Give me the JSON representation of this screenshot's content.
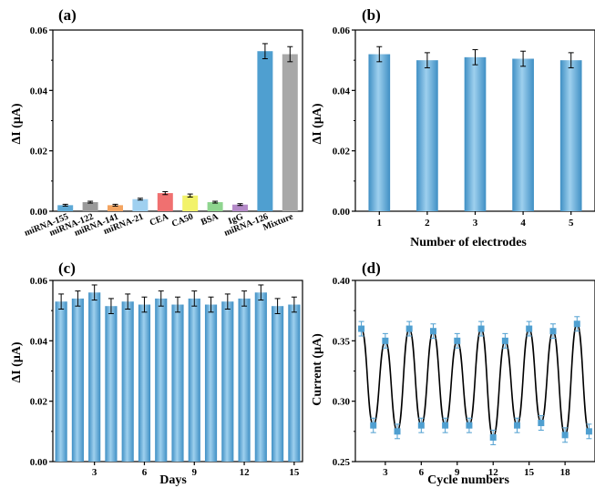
{
  "chart_data": [
    {
      "panel": "(a)",
      "type": "bar",
      "ylabel": "ΔI (μA)",
      "xlabel": "",
      "ylim": [
        0,
        0.06
      ],
      "yticks": [
        "0.00",
        "0.02",
        "0.04",
        "0.06"
      ],
      "categories": [
        "miRNA-155",
        "miRNA-122",
        "miRNA-141",
        "miRNA-21",
        "CEA",
        "CA50",
        "BSA",
        "IgG",
        "miRNA-126",
        "Mixture"
      ],
      "values": [
        0.002,
        0.003,
        0.002,
        0.004,
        0.006,
        0.0052,
        0.003,
        0.0022,
        0.053,
        0.052
      ],
      "errors": [
        0.0003,
        0.0003,
        0.0003,
        0.0003,
        0.0005,
        0.0005,
        0.0003,
        0.0003,
        0.0025,
        0.0025
      ],
      "colors": [
        "#5da9d6",
        "#9a9a9a",
        "#f4a460",
        "#9fd0f0",
        "#f07070",
        "#f2f26a",
        "#8fd58f",
        "#b48ac8",
        "#4f9fd0",
        "#a8a8a8"
      ]
    },
    {
      "panel": "(b)",
      "type": "bar",
      "ylabel": "ΔI (μA)",
      "xlabel": "Number of electrodes",
      "ylim": [
        0,
        0.06
      ],
      "yticks": [
        "0.00",
        "0.02",
        "0.04",
        "0.06"
      ],
      "categories": [
        "1",
        "2",
        "3",
        "4",
        "5"
      ],
      "values": [
        0.052,
        0.05,
        0.051,
        0.0505,
        0.05
      ],
      "errors": [
        0.0025,
        0.0025,
        0.0025,
        0.0025,
        0.0025
      ]
    },
    {
      "panel": "(c)",
      "type": "bar",
      "ylabel": "ΔI (μA)",
      "xlabel": "Days",
      "ylim": [
        0,
        0.06
      ],
      "yticks": [
        "0.00",
        "0.02",
        "0.04",
        "0.06"
      ],
      "xticks": [
        "3",
        "6",
        "9",
        "12",
        "15"
      ],
      "x": [
        1,
        2,
        3,
        4,
        5,
        6,
        7,
        8,
        9,
        10,
        11,
        12,
        13,
        14,
        15
      ],
      "values": [
        0.053,
        0.054,
        0.056,
        0.0515,
        0.053,
        0.052,
        0.054,
        0.052,
        0.054,
        0.052,
        0.053,
        0.054,
        0.056,
        0.0515,
        0.052
      ],
      "errors": [
        0.0025,
        0.0025,
        0.0025,
        0.0025,
        0.0025,
        0.0025,
        0.0025,
        0.0025,
        0.0025,
        0.0025,
        0.0025,
        0.0025,
        0.0025,
        0.0025,
        0.0025
      ]
    },
    {
      "panel": "(d)",
      "type": "line",
      "ylabel": "Current (μA)",
      "xlabel": "Cycle numbers",
      "ylim": [
        0.25,
        0.4
      ],
      "xlim": [
        0.5,
        20.5
      ],
      "yticks": [
        "0.25",
        "0.30",
        "0.35",
        "0.40"
      ],
      "xticks": [
        "3",
        "6",
        "9",
        "12",
        "15",
        "18"
      ],
      "x": [
        1,
        2,
        3,
        4,
        5,
        6,
        7,
        8,
        9,
        10,
        11,
        12,
        13,
        14,
        15,
        16,
        17,
        18,
        19,
        20
      ],
      "values": [
        0.36,
        0.28,
        0.35,
        0.275,
        0.36,
        0.28,
        0.358,
        0.28,
        0.35,
        0.28,
        0.36,
        0.27,
        0.35,
        0.28,
        0.36,
        0.282,
        0.358,
        0.272,
        0.364,
        0.275
      ],
      "errors": [
        0.006,
        0.006,
        0.006,
        0.006,
        0.006,
        0.006,
        0.006,
        0.006,
        0.006,
        0.006,
        0.006,
        0.006,
        0.006,
        0.006,
        0.006,
        0.006,
        0.006,
        0.006,
        0.006,
        0.006
      ]
    }
  ],
  "style": {
    "bar_color": "#4f9fd0",
    "bar_highlight": "#9ed0ee",
    "marker_color": "#4f9fd0",
    "line_color": "#000000"
  }
}
